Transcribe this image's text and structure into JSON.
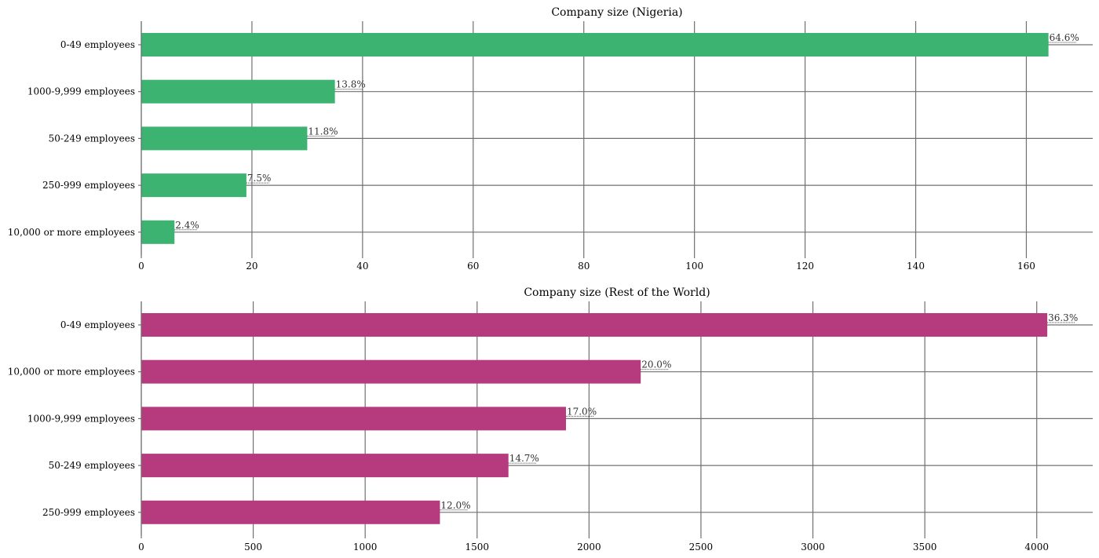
{
  "chart_data": [
    {
      "type": "bar",
      "orientation": "horizontal",
      "title": "Company size (Nigeria)",
      "categories": [
        "0-49 employees",
        "1000-9,999 employees",
        "50-249 employees",
        "250-999 employees",
        "10,000 or more employees"
      ],
      "values": [
        164,
        35,
        30,
        19,
        6
      ],
      "data_labels": [
        "64.6%",
        "13.8%",
        "11.8%",
        "7.5%",
        "2.4%"
      ],
      "xticks": [
        "0",
        "20",
        "40",
        "60",
        "80",
        "100",
        "120",
        "140",
        "160"
      ],
      "xlim": [
        0,
        172
      ],
      "grid": true,
      "color": "#3cb371"
    },
    {
      "type": "bar",
      "orientation": "horizontal",
      "title": "Company size (Rest of the World)",
      "categories": [
        "0-49 employees",
        "10,000 or more employees",
        "1000-9,999 employees",
        "50-249 employees",
        "250-999 employees"
      ],
      "values": [
        4047,
        2231,
        1897,
        1640,
        1334
      ],
      "data_labels": [
        "36.3%",
        "20.0%",
        "17.0%",
        "14.7%",
        "12.0%"
      ],
      "xticks": [
        "0",
        "500",
        "1000",
        "1500",
        "2000",
        "2500",
        "3000",
        "3500",
        "4000"
      ],
      "xlim": [
        0,
        4250
      ],
      "grid": true,
      "color": "#b53b7e"
    }
  ]
}
